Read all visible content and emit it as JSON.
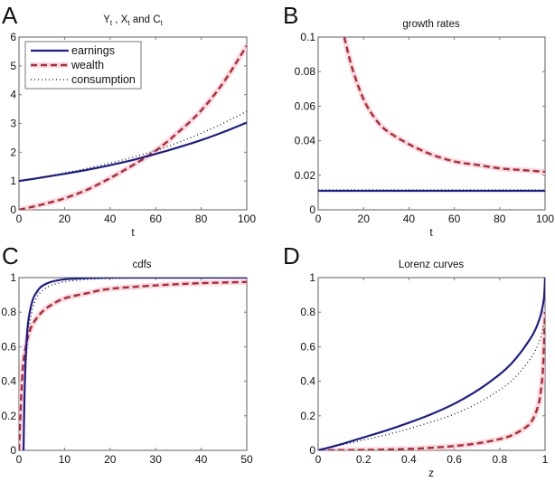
{
  "colors": {
    "earnings": "#1c1c8e",
    "wealth": "#b0283a",
    "wealth_halo": "#f7c9cf",
    "consumption": "#111111",
    "frame": "#777777"
  },
  "chart_data": [
    {
      "panel": "A",
      "type": "line",
      "title": "Y_t , X_t and C_t",
      "title_parts": {
        "y": "Y",
        "x": "X",
        "c": "C",
        "sub": "t",
        "sep": " , ",
        "and": " and "
      },
      "xlabel": "t",
      "ylabel": "",
      "xlim": [
        0,
        100
      ],
      "ylim": [
        0,
        6
      ],
      "xticks": [
        0,
        20,
        40,
        60,
        80,
        100
      ],
      "yticks": [
        0,
        1,
        2,
        3,
        4,
        5,
        6
      ],
      "legend": {
        "placement": "top-left",
        "entries": [
          "earnings",
          "wealth",
          "consumption"
        ]
      },
      "series": [
        {
          "name": "earnings",
          "style": "solid",
          "x": [
            0,
            10,
            20,
            30,
            40,
            50,
            60,
            70,
            80,
            90,
            100
          ],
          "y": [
            1.0,
            1.12,
            1.25,
            1.39,
            1.55,
            1.73,
            1.94,
            2.17,
            2.42,
            2.71,
            3.03
          ]
        },
        {
          "name": "wealth",
          "style": "dashed",
          "x": [
            0,
            10,
            20,
            30,
            40,
            50,
            60,
            70,
            80,
            90,
            100
          ],
          "y": [
            0.0,
            0.18,
            0.4,
            0.7,
            1.1,
            1.55,
            2.05,
            2.7,
            3.45,
            4.45,
            5.7
          ]
        },
        {
          "name": "consumption",
          "style": "dotted",
          "x": [
            0,
            10,
            20,
            30,
            40,
            50,
            60,
            70,
            80,
            90,
            100
          ],
          "y": [
            1.0,
            1.14,
            1.28,
            1.44,
            1.62,
            1.83,
            2.06,
            2.34,
            2.66,
            3.02,
            3.42
          ]
        }
      ]
    },
    {
      "panel": "B",
      "type": "line",
      "title": "growth rates",
      "xlabel": "t",
      "ylabel": "",
      "xlim": [
        0,
        100
      ],
      "ylim": [
        0,
        0.1
      ],
      "xticks": [
        0,
        20,
        40,
        60,
        80,
        100
      ],
      "yticks": [
        0,
        0.02,
        0.04,
        0.06,
        0.08,
        0.1
      ],
      "ytick_labels": [
        "0",
        "0.02",
        "0.04",
        "0.06",
        "0.08",
        "0.1"
      ],
      "series": [
        {
          "name": "earnings",
          "style": "solid",
          "x": [
            0,
            100
          ],
          "y": [
            0.011,
            0.011
          ]
        },
        {
          "name": "wealth",
          "style": "dashed",
          "x": [
            11.5,
            15,
            20,
            25,
            30,
            40,
            50,
            60,
            70,
            80,
            90,
            100
          ],
          "y": [
            0.1,
            0.082,
            0.064,
            0.053,
            0.046,
            0.038,
            0.032,
            0.028,
            0.026,
            0.024,
            0.023,
            0.022
          ]
        },
        {
          "name": "consumption",
          "style": "dotted",
          "x": [
            0,
            100
          ],
          "y": [
            0.0115,
            0.0115
          ]
        }
      ]
    },
    {
      "panel": "C",
      "type": "line",
      "title": "cdfs",
      "xlabel": "",
      "ylabel": "",
      "xlim": [
        0,
        50
      ],
      "ylim": [
        0,
        1
      ],
      "xticks": [
        0,
        10,
        20,
        30,
        40,
        50
      ],
      "yticks": [
        0,
        0.2,
        0.4,
        0.6,
        0.8,
        1
      ],
      "ytick_labels": [
        "0",
        "0.2",
        "0.4",
        "0.6",
        "0.8",
        "1"
      ],
      "series": [
        {
          "name": "earnings",
          "style": "solid",
          "x": [
            1.0,
            1.2,
            1.5,
            2,
            3,
            4,
            5,
            7,
            10,
            15,
            20,
            30,
            50
          ],
          "y": [
            0.0,
            0.3,
            0.55,
            0.74,
            0.87,
            0.92,
            0.95,
            0.975,
            0.99,
            0.997,
            1.0,
            1.0,
            1.0
          ]
        },
        {
          "name": "wealth",
          "style": "dashed",
          "x": [
            0,
            0.3,
            0.7,
            1,
            1.5,
            2,
            3,
            5,
            7,
            10,
            15,
            20,
            30,
            40,
            50
          ],
          "y": [
            0.0,
            0.2,
            0.42,
            0.52,
            0.6,
            0.66,
            0.73,
            0.8,
            0.84,
            0.88,
            0.91,
            0.935,
            0.955,
            0.968,
            0.975
          ]
        },
        {
          "name": "consumption",
          "style": "dotted",
          "x": [
            1.0,
            1.3,
            1.7,
            2,
            3,
            4,
            5,
            7,
            10,
            15,
            20,
            30,
            50
          ],
          "y": [
            0.0,
            0.35,
            0.57,
            0.68,
            0.82,
            0.89,
            0.92,
            0.955,
            0.975,
            0.99,
            0.995,
            0.999,
            1.0
          ]
        }
      ]
    },
    {
      "panel": "D",
      "type": "line",
      "title": "Lorenz curves",
      "xlabel": "z",
      "ylabel": "",
      "xlim": [
        0,
        1
      ],
      "ylim": [
        0,
        1
      ],
      "xticks": [
        0,
        0.2,
        0.4,
        0.6,
        0.8,
        1
      ],
      "xtick_labels": [
        "0",
        "0.2",
        "0.4",
        "0.6",
        "0.8",
        "1"
      ],
      "yticks": [
        0,
        0.2,
        0.4,
        0.6,
        0.8,
        1
      ],
      "ytick_labels": [
        "0",
        "0.2",
        "0.4",
        "0.6",
        "0.8",
        "1"
      ],
      "series": [
        {
          "name": "earnings",
          "style": "solid",
          "x": [
            0,
            0.1,
            0.2,
            0.3,
            0.4,
            0.5,
            0.6,
            0.7,
            0.8,
            0.85,
            0.9,
            0.95,
            0.98,
            0.995,
            1
          ],
          "y": [
            0,
            0.035,
            0.075,
            0.115,
            0.16,
            0.21,
            0.27,
            0.345,
            0.44,
            0.5,
            0.58,
            0.68,
            0.78,
            0.88,
            1.0
          ]
        },
        {
          "name": "wealth",
          "style": "dashed",
          "x": [
            0,
            0.2,
            0.4,
            0.5,
            0.6,
            0.7,
            0.8,
            0.85,
            0.9,
            0.93,
            0.95,
            0.97,
            0.98,
            0.99,
            0.995,
            1
          ],
          "y": [
            0,
            0.002,
            0.008,
            0.015,
            0.025,
            0.04,
            0.065,
            0.085,
            0.12,
            0.15,
            0.19,
            0.26,
            0.33,
            0.45,
            0.6,
            0.8
          ]
        },
        {
          "name": "consumption",
          "style": "dotted",
          "x": [
            0,
            0.1,
            0.2,
            0.3,
            0.4,
            0.5,
            0.6,
            0.7,
            0.8,
            0.85,
            0.9,
            0.95,
            0.98,
            0.995
          ],
          "y": [
            0,
            0.03,
            0.06,
            0.09,
            0.125,
            0.165,
            0.21,
            0.27,
            0.35,
            0.4,
            0.47,
            0.56,
            0.65,
            0.73
          ]
        }
      ]
    }
  ]
}
